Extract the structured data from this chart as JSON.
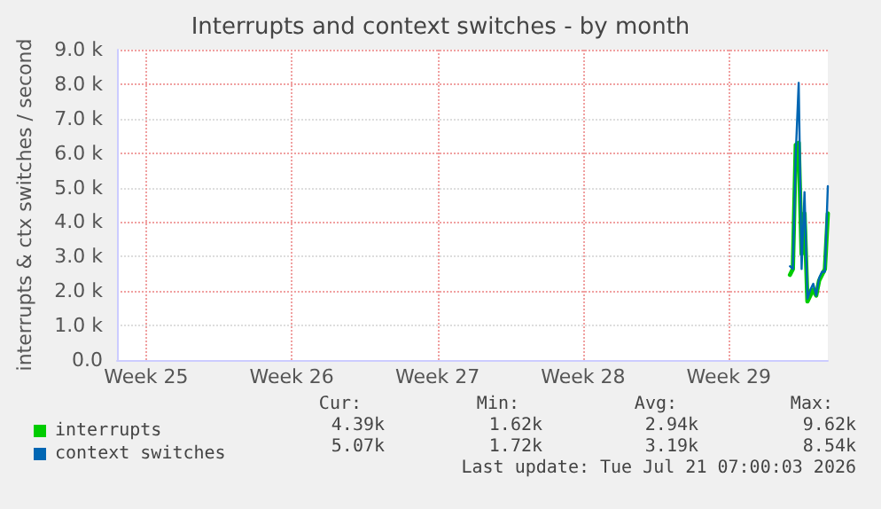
{
  "chart_data": {
    "type": "line",
    "title": "Interrupts and context switches - by month",
    "ylabel": "interrupts & ctx switches / second",
    "categories": [
      null,
      null,
      null,
      null,
      null,
      null,
      null,
      null,
      null,
      null,
      "Week 25",
      null,
      null,
      null,
      null,
      null,
      null,
      null,
      null,
      null,
      null,
      null,
      null,
      null,
      null,
      null,
      null,
      null,
      null,
      null,
      null,
      null,
      null,
      null,
      null,
      null,
      null,
      null,
      null,
      null,
      null,
      null,
      null,
      null,
      null,
      null,
      null,
      null,
      null,
      null,
      null,
      null,
      null,
      null,
      null,
      null,
      null,
      null,
      null,
      null,
      "Week 26",
      null,
      null,
      null,
      null,
      null,
      null,
      null,
      null,
      null,
      null,
      null,
      null,
      null,
      null,
      null,
      null,
      null,
      null,
      null,
      null,
      null,
      null,
      null,
      null,
      null,
      null,
      null,
      null,
      null,
      null,
      null,
      null,
      null,
      null,
      null,
      null,
      null,
      null,
      null,
      null,
      null,
      null,
      null,
      null,
      null,
      null,
      null,
      null,
      null,
      "Week 27",
      null,
      null,
      null,
      null,
      null,
      null,
      null,
      null,
      null,
      null,
      null,
      null,
      null,
      null,
      null,
      null,
      null,
      null,
      null,
      null,
      null,
      null,
      null,
      null,
      null,
      null,
      null,
      null,
      null,
      null,
      null,
      null,
      null,
      null,
      null,
      null,
      null,
      null,
      null,
      null,
      null,
      null,
      null,
      null,
      null,
      null,
      null,
      null,
      null,
      "Week 28",
      null,
      null,
      null,
      null,
      null,
      null,
      null,
      null,
      null,
      null,
      null,
      null,
      null,
      null,
      null,
      null,
      null,
      null,
      null,
      null,
      null,
      null,
      null,
      null,
      null,
      null,
      null,
      null,
      null,
      null,
      null,
      null,
      null,
      null,
      null,
      null,
      null,
      null,
      null,
      null,
      null,
      null,
      null,
      null,
      null,
      null,
      null,
      null,
      null,
      "Week 29",
      null,
      null,
      null,
      null,
      null,
      null,
      null,
      null,
      null,
      null,
      null,
      null,
      null,
      null,
      null,
      null,
      null,
      null,
      null,
      null,
      null,
      null,
      null,
      null,
      null,
      null,
      null,
      null,
      null,
      null,
      null,
      null,
      null,
      null
    ],
    "ylim": [
      0,
      9000
    ],
    "yticks": [
      {
        "value": 0,
        "label": "0.0"
      },
      {
        "value": 1000,
        "label": "1.0 k"
      },
      {
        "value": 2000,
        "label": "2.0 k"
      },
      {
        "value": 3000,
        "label": "3.0 k"
      },
      {
        "value": 4000,
        "label": "4.0 k"
      },
      {
        "value": 5000,
        "label": "5.0 k"
      },
      {
        "value": 6000,
        "label": "6.0 k"
      },
      {
        "value": 7000,
        "label": "7.0 k"
      },
      {
        "value": 8000,
        "label": "8.0 k"
      },
      {
        "value": 9000,
        "label": "9.0 k"
      }
    ],
    "grid": true,
    "legend": "bottom left",
    "marker": "none",
    "line_style": "solid",
    "series": [
      {
        "name": "interrupts",
        "color": "#00cc00",
        "values": [
          null,
          null,
          null,
          null,
          null,
          null,
          null,
          null,
          null,
          null,
          null,
          null,
          null,
          null,
          null,
          null,
          null,
          null,
          null,
          null,
          null,
          null,
          null,
          null,
          null,
          null,
          null,
          null,
          null,
          null,
          null,
          null,
          null,
          null,
          null,
          null,
          null,
          null,
          null,
          null,
          null,
          null,
          null,
          null,
          null,
          null,
          null,
          null,
          null,
          null,
          null,
          null,
          null,
          null,
          null,
          null,
          null,
          null,
          null,
          null,
          null,
          null,
          null,
          null,
          null,
          null,
          null,
          null,
          null,
          null,
          null,
          null,
          null,
          null,
          null,
          null,
          null,
          null,
          null,
          null,
          null,
          null,
          null,
          null,
          null,
          null,
          null,
          null,
          null,
          null,
          null,
          null,
          null,
          null,
          null,
          null,
          null,
          null,
          null,
          null,
          null,
          null,
          null,
          null,
          null,
          null,
          null,
          null,
          null,
          null,
          null,
          null,
          null,
          null,
          null,
          null,
          null,
          null,
          null,
          null,
          null,
          null,
          null,
          null,
          null,
          null,
          null,
          null,
          null,
          null,
          null,
          null,
          null,
          null,
          null,
          null,
          null,
          null,
          null,
          null,
          null,
          null,
          null,
          null,
          null,
          null,
          null,
          null,
          null,
          null,
          null,
          null,
          null,
          null,
          null,
          null,
          null,
          null,
          null,
          null,
          null,
          null,
          null,
          null,
          null,
          null,
          null,
          null,
          null,
          null,
          null,
          null,
          null,
          null,
          null,
          null,
          null,
          null,
          null,
          null,
          null,
          null,
          null,
          null,
          null,
          null,
          null,
          null,
          null,
          null,
          null,
          null,
          null,
          null,
          null,
          null,
          null,
          null,
          null,
          null,
          null,
          null,
          null,
          null,
          null,
          null,
          null,
          null,
          null,
          null,
          null,
          null,
          null,
          null,
          null,
          null,
          null,
          null,
          null,
          null,
          null,
          null,
          null,
          null,
          null,
          null,
          null,
          null,
          null,
          null,
          null,
          2470,
          2640,
          6240,
          6300,
          3070,
          4250,
          1700,
          1870,
          2040,
          1870,
          2300,
          2470,
          2640,
          4250
        ]
      },
      {
        "name": "context switches",
        "color": "#0066b3",
        "values": [
          null,
          null,
          null,
          null,
          null,
          null,
          null,
          null,
          null,
          null,
          null,
          null,
          null,
          null,
          null,
          null,
          null,
          null,
          null,
          null,
          null,
          null,
          null,
          null,
          null,
          null,
          null,
          null,
          null,
          null,
          null,
          null,
          null,
          null,
          null,
          null,
          null,
          null,
          null,
          null,
          null,
          null,
          null,
          null,
          null,
          null,
          null,
          null,
          null,
          null,
          null,
          null,
          null,
          null,
          null,
          null,
          null,
          null,
          null,
          null,
          null,
          null,
          null,
          null,
          null,
          null,
          null,
          null,
          null,
          null,
          null,
          null,
          null,
          null,
          null,
          null,
          null,
          null,
          null,
          null,
          null,
          null,
          null,
          null,
          null,
          null,
          null,
          null,
          null,
          null,
          null,
          null,
          null,
          null,
          null,
          null,
          null,
          null,
          null,
          null,
          null,
          null,
          null,
          null,
          null,
          null,
          null,
          null,
          null,
          null,
          null,
          null,
          null,
          null,
          null,
          null,
          null,
          null,
          null,
          null,
          null,
          null,
          null,
          null,
          null,
          null,
          null,
          null,
          null,
          null,
          null,
          null,
          null,
          null,
          null,
          null,
          null,
          null,
          null,
          null,
          null,
          null,
          null,
          null,
          null,
          null,
          null,
          null,
          null,
          null,
          null,
          null,
          null,
          null,
          null,
          null,
          null,
          null,
          null,
          null,
          null,
          null,
          null,
          null,
          null,
          null,
          null,
          null,
          null,
          null,
          null,
          null,
          null,
          null,
          null,
          null,
          null,
          null,
          null,
          null,
          null,
          null,
          null,
          null,
          null,
          null,
          null,
          null,
          null,
          null,
          null,
          null,
          null,
          null,
          null,
          null,
          null,
          null,
          null,
          null,
          null,
          null,
          null,
          null,
          null,
          null,
          null,
          null,
          null,
          null,
          null,
          null,
          null,
          null,
          null,
          null,
          null,
          null,
          null,
          null,
          null,
          null,
          null,
          null,
          null,
          null,
          null,
          null,
          null,
          null,
          null,
          2720,
          2640,
          5980,
          8040,
          2640,
          4870,
          1780,
          2040,
          2210,
          1870,
          2380,
          2560,
          2560,
          5040
        ]
      }
    ],
    "annotations": [
      "Cur:",
      "Min:",
      "Avg:",
      "Max:",
      "4.39k",
      "1.62k",
      "2.94k",
      "9.62k",
      "5.07k",
      "1.72k",
      "3.19k",
      "8.54k",
      "Last update: Tue Jul 21 07:00:03 2026"
    ]
  }
}
